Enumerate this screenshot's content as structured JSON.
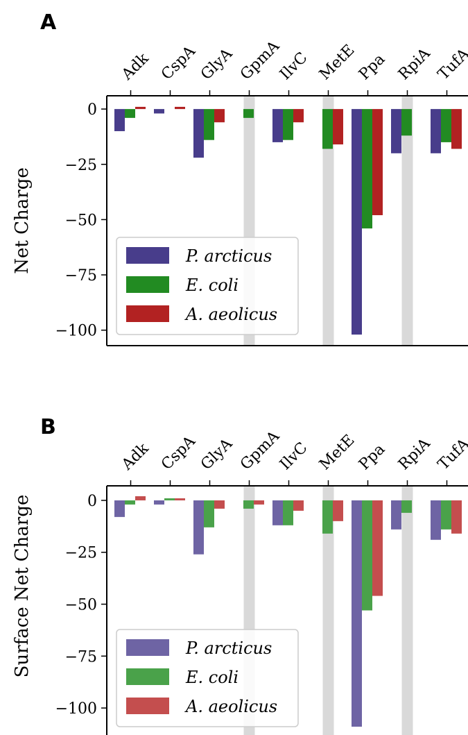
{
  "chart_data": [
    {
      "panel": "A",
      "type": "bar",
      "ylabel": "Net Charge",
      "ylim": [
        -107,
        6
      ],
      "yticks": [
        0,
        -25,
        -50,
        -75,
        -100
      ],
      "ytick_labels": [
        "0",
        "−25",
        "−50",
        "−75",
        "−100"
      ],
      "categories": [
        "Adk",
        "CspA",
        "GlyA",
        "GpmA",
        "IlvC",
        "MetE",
        "Ppa",
        "RpiA",
        "TufA"
      ],
      "highlighted_categories": [
        "GpmA",
        "MetE",
        "RpiA"
      ],
      "legend_position": "lower-left",
      "series": [
        {
          "name": "P. arcticus",
          "color": "#483d8b",
          "values": [
            -10,
            -2,
            -22,
            0,
            -15,
            0,
            -102,
            -20,
            -20
          ]
        },
        {
          "name": "E. coli",
          "color": "#228b22",
          "values": [
            -4,
            0,
            -14,
            -4,
            -14,
            -18,
            -54,
            -12,
            -15
          ]
        },
        {
          "name": "A. aeolicus",
          "color": "#b22222",
          "values": [
            1,
            1,
            -6,
            0,
            -6,
            -16,
            -48,
            0,
            -18
          ]
        }
      ]
    },
    {
      "panel": "B",
      "type": "bar",
      "ylabel": "Surface Net Charge",
      "ylim": [
        -113,
        7
      ],
      "yticks": [
        0,
        -25,
        -50,
        -75,
        -100
      ],
      "ytick_labels": [
        "0",
        "−25",
        "−50",
        "−75",
        "−100"
      ],
      "categories": [
        "Adk",
        "CspA",
        "GlyA",
        "GpmA",
        "IlvC",
        "MetE",
        "Ppa",
        "RpiA",
        "TufA"
      ],
      "highlighted_categories": [
        "GpmA",
        "MetE",
        "RpiA"
      ],
      "legend_position": "lower-left",
      "series": [
        {
          "name": "P. arcticus",
          "color": "#6e64a4",
          "values": [
            -8,
            -2,
            -26,
            0,
            -12,
            0,
            -109,
            -14,
            -19
          ]
        },
        {
          "name": "E. coli",
          "color": "#4aa24a",
          "values": [
            -2,
            1,
            -13,
            -4,
            -12,
            -16,
            -53,
            -6,
            -14
          ]
        },
        {
          "name": "A. aeolicus",
          "color": "#c44e4e",
          "values": [
            2,
            1,
            -4,
            -2,
            -5,
            -10,
            -46,
            0,
            -16
          ]
        }
      ]
    }
  ]
}
